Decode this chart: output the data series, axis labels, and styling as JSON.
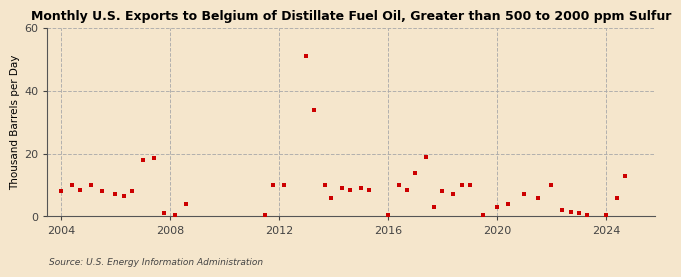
{
  "title": "Monthly U.S. Exports to Belgium of Distillate Fuel Oil, Greater than 500 to 2000 ppm Sulfur",
  "ylabel": "Thousand Barrels per Day",
  "source": "Source: U.S. Energy Information Administration",
  "background_color": "#f5e6cc",
  "marker_color": "#cc0000",
  "ylim": [
    0,
    60
  ],
  "yticks": [
    0,
    20,
    40,
    60
  ],
  "xlim": [
    2003.5,
    2025.8
  ],
  "xticks": [
    2004,
    2008,
    2012,
    2016,
    2020,
    2024
  ],
  "data_points": [
    [
      2004.0,
      8.0
    ],
    [
      2004.4,
      10.0
    ],
    [
      2004.7,
      8.5
    ],
    [
      2005.1,
      10.0
    ],
    [
      2005.5,
      8.0
    ],
    [
      2006.0,
      7.0
    ],
    [
      2006.3,
      6.5
    ],
    [
      2006.6,
      8.0
    ],
    [
      2007.0,
      18.0
    ],
    [
      2007.4,
      18.5
    ],
    [
      2007.8,
      1.0
    ],
    [
      2008.2,
      0.5
    ],
    [
      2008.6,
      4.0
    ],
    [
      2011.5,
      0.5
    ],
    [
      2011.8,
      10.0
    ],
    [
      2012.2,
      10.0
    ],
    [
      2013.0,
      51.0
    ],
    [
      2013.3,
      34.0
    ],
    [
      2013.7,
      10.0
    ],
    [
      2013.9,
      6.0
    ],
    [
      2014.3,
      9.0
    ],
    [
      2014.6,
      8.5
    ],
    [
      2015.0,
      9.0
    ],
    [
      2015.3,
      8.5
    ],
    [
      2016.0,
      0.5
    ],
    [
      2016.4,
      10.0
    ],
    [
      2016.7,
      8.5
    ],
    [
      2017.0,
      14.0
    ],
    [
      2017.4,
      19.0
    ],
    [
      2017.7,
      3.0
    ],
    [
      2018.0,
      8.0
    ],
    [
      2018.4,
      7.0
    ],
    [
      2018.7,
      10.0
    ],
    [
      2019.0,
      10.0
    ],
    [
      2019.5,
      0.5
    ],
    [
      2020.0,
      3.0
    ],
    [
      2020.4,
      4.0
    ],
    [
      2021.0,
      7.0
    ],
    [
      2021.5,
      6.0
    ],
    [
      2022.0,
      10.0
    ],
    [
      2022.4,
      2.0
    ],
    [
      2022.7,
      1.5
    ],
    [
      2023.0,
      1.0
    ],
    [
      2023.3,
      0.5
    ],
    [
      2024.0,
      0.5
    ],
    [
      2024.4,
      6.0
    ],
    [
      2024.7,
      13.0
    ]
  ]
}
